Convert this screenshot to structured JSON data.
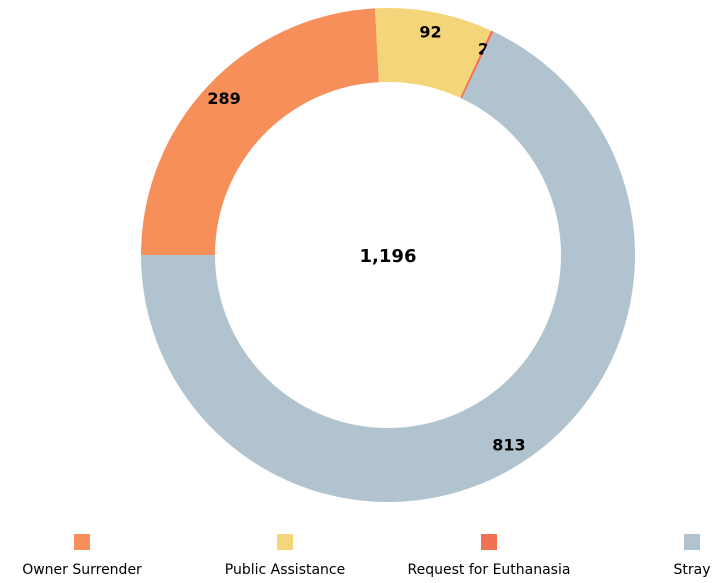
{
  "chart_data": {
    "type": "donut",
    "categories": [
      "Owner Surrender",
      "Public Assistance",
      "Request for Euthanasia",
      "Stray"
    ],
    "values": [
      289,
      92,
      2,
      813
    ],
    "colors": [
      "#f68f5a",
      "#f5d57a",
      "#f07253",
      "#b0c3cf"
    ],
    "center_label": "1,196",
    "legend": "bottom"
  }
}
